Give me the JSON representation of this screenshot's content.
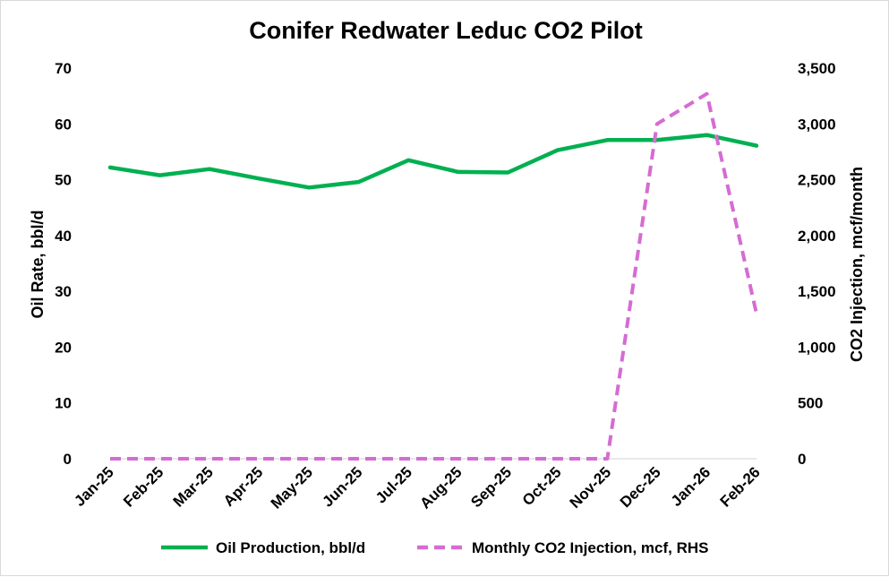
{
  "chart_data": {
    "type": "line",
    "title": "Conifer Redwater Leduc CO2 Pilot",
    "categories": [
      "Jan-25",
      "Feb-25",
      "Mar-25",
      "Apr-25",
      "May-25",
      "Jun-25",
      "Jul-25",
      "Aug-25",
      "Sep-25",
      "Oct-25",
      "Nov-25",
      "Dec-25",
      "Jan-26",
      "Feb-26"
    ],
    "ylabel": "Oil Rate, bbl/d",
    "y2label": "CO2 Injection, mcf/month",
    "ylim": [
      0,
      70
    ],
    "y2lim": [
      0,
      3500
    ],
    "yticks": [
      "0",
      "10",
      "20",
      "30",
      "40",
      "50",
      "60",
      "70"
    ],
    "y2ticks": [
      "0",
      "500",
      "1,000",
      "1,500",
      "2,000",
      "2,500",
      "3,000",
      "3,500"
    ],
    "series": [
      {
        "name": "Oil Production, bbl/d",
        "axis": "left",
        "color": "#00b050",
        "style": "solid",
        "values": [
          52.2,
          50.8,
          51.9,
          50.2,
          48.6,
          49.6,
          53.5,
          51.4,
          51.3,
          55.3,
          57.1,
          57.1,
          58.0,
          56.1
        ]
      },
      {
        "name": "Monthly CO2 Injection, mcf, RHS",
        "axis": "right",
        "color": "#d56cd2",
        "style": "dashed",
        "values": [
          0,
          0,
          0,
          0,
          0,
          0,
          0,
          0,
          0,
          0,
          0,
          3000,
          3270,
          1300
        ]
      }
    ],
    "grid": false,
    "legend": "bottom"
  }
}
